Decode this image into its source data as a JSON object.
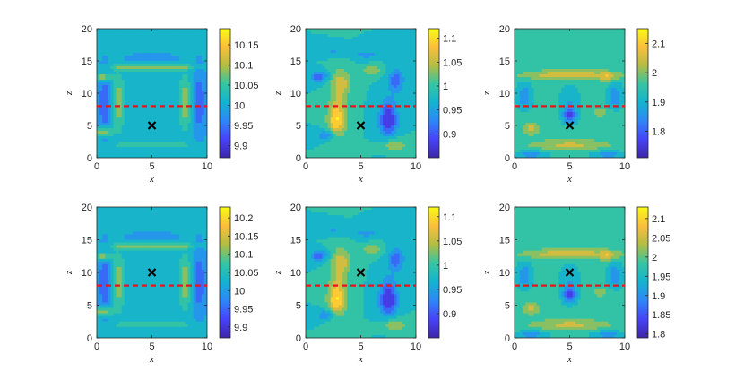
{
  "figure": {
    "colormap": [
      "#3e26a8",
      "#4743f8",
      "#2e87f7",
      "#14b3cf",
      "#36c5a2",
      "#b3bd44",
      "#fbbe3c",
      "#f9fb15"
    ],
    "line_color": "#1a1a1a",
    "marker_color": "#000000",
    "dashed_line_color": "#e8141c"
  },
  "chart_data": [
    {
      "type": "heatmap",
      "panel": "top-left",
      "xlabel": "x",
      "ylabel": "z",
      "xlim": [
        0,
        10
      ],
      "ylim": [
        0,
        20
      ],
      "xticks": [
        "0",
        "5",
        "10"
      ],
      "yticks": [
        "0",
        "5",
        "10",
        "15",
        "20"
      ],
      "colorbar": {
        "range": [
          9.87,
          10.19
        ],
        "ticks": [
          "9.9",
          "9.95",
          "10",
          "10.05",
          "10.1",
          "10.15"
        ]
      },
      "marker": {
        "x": 5,
        "y": 5,
        "symbol": "x"
      },
      "dashed_line": {
        "y": 8
      },
      "pattern": "a"
    },
    {
      "type": "heatmap",
      "panel": "top-middle",
      "xlabel": "x",
      "ylabel": "z",
      "xlim": [
        0,
        10
      ],
      "ylim": [
        0,
        20
      ],
      "xticks": [
        "0",
        "5",
        "10"
      ],
      "yticks": [
        "0",
        "5",
        "10",
        "15",
        "20"
      ],
      "colorbar": {
        "range": [
          0.85,
          1.12
        ],
        "ticks": [
          "0.9",
          "0.95",
          "1",
          "1.05",
          "1.1"
        ]
      },
      "marker": {
        "x": 5,
        "y": 5,
        "symbol": "x"
      },
      "dashed_line": {
        "y": 8
      },
      "pattern": "b"
    },
    {
      "type": "heatmap",
      "panel": "top-right",
      "xlabel": "x",
      "ylabel": "z",
      "xlim": [
        0,
        10
      ],
      "ylim": [
        0,
        20
      ],
      "xticks": [
        "0",
        "5",
        "10"
      ],
      "yticks": [
        "0",
        "5",
        "10",
        "15",
        "20"
      ],
      "colorbar": {
        "range": [
          1.71,
          2.15
        ],
        "ticks": [
          "1.8",
          "1.9",
          "2",
          "2.1"
        ]
      },
      "marker": {
        "x": 5,
        "y": 5,
        "symbol": "x"
      },
      "dashed_line": {
        "y": 8
      },
      "pattern": "c"
    },
    {
      "type": "heatmap",
      "panel": "bottom-left",
      "xlabel": "x",
      "ylabel": "z",
      "xlim": [
        0,
        10
      ],
      "ylim": [
        0,
        20
      ],
      "xticks": [
        "0",
        "5",
        "10"
      ],
      "yticks": [
        "0",
        "5",
        "10",
        "15",
        "20"
      ],
      "colorbar": {
        "range": [
          9.87,
          10.23
        ],
        "ticks": [
          "9.9",
          "9.95",
          "10",
          "10.05",
          "10.1",
          "10.15",
          "10.2"
        ]
      },
      "marker": {
        "x": 5,
        "y": 10,
        "symbol": "x"
      },
      "dashed_line": {
        "y": 8
      },
      "pattern": "a"
    },
    {
      "type": "heatmap",
      "panel": "bottom-middle",
      "xlabel": "x",
      "ylabel": "z",
      "xlim": [
        0,
        10
      ],
      "ylim": [
        0,
        20
      ],
      "xticks": [
        "0",
        "5",
        "10"
      ],
      "yticks": [
        "0",
        "5",
        "10",
        "15",
        "20"
      ],
      "colorbar": {
        "range": [
          0.85,
          1.12
        ],
        "ticks": [
          "0.9",
          "0.95",
          "1",
          "1.05",
          "1.1"
        ]
      },
      "marker": {
        "x": 5,
        "y": 10,
        "symbol": "x"
      },
      "dashed_line": {
        "y": 8
      },
      "pattern": "b"
    },
    {
      "type": "heatmap",
      "panel": "bottom-right",
      "xlabel": "x",
      "ylabel": "z",
      "xlim": [
        0,
        10
      ],
      "ylim": [
        0,
        20
      ],
      "xticks": [
        "0",
        "5",
        "10"
      ],
      "yticks": [
        "0",
        "5",
        "10",
        "15",
        "20"
      ],
      "colorbar": {
        "range": [
          1.79,
          2.13
        ],
        "ticks": [
          "1.8",
          "1.85",
          "1.9",
          "1.95",
          "2",
          "2.05",
          "2.1"
        ]
      },
      "marker": {
        "x": 5,
        "y": 10,
        "symbol": "x"
      },
      "dashed_line": {
        "y": 8
      },
      "pattern": "c"
    }
  ]
}
